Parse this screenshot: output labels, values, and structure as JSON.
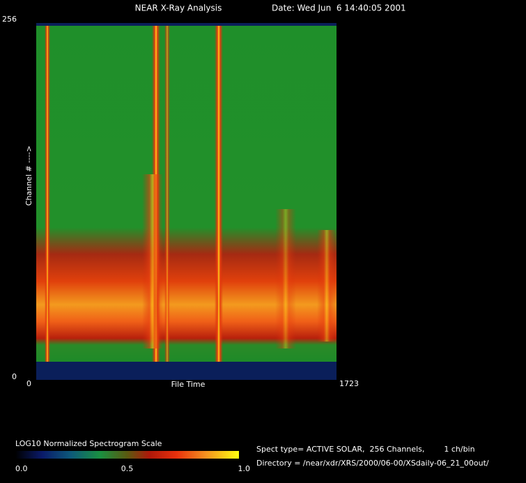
{
  "chart_data": {
    "type": "spectrogram",
    "title": "NEAR X-Ray Analysis",
    "subtitle": "Date: Wed Jun  6 14:40:05 2001",
    "xlabel": "File Time",
    "ylabel": "Channel # ---->",
    "xlim": [
      0,
      1723
    ],
    "xticks": [
      0,
      1723
    ],
    "ylim": [
      0,
      256
    ],
    "yticks": [
      0,
      256
    ],
    "colorbar": {
      "title": "LOG10 Normalized Spectrogram Scale",
      "lim": [
        0,
        1
      ],
      "ticks": [
        {
          "value": 0,
          "label": "0.0"
        },
        {
          "value": 0.5,
          "label": "0.5"
        },
        {
          "value": 1,
          "label": "1.0"
        }
      ]
    },
    "info": [
      "Spect type= ACTIVE SOLAR,  256 Channels,        1 ch/bin",
      "Directory = /near/xdr/XRS/2000/06-00/XSdaily-06_21_00out/"
    ]
  }
}
